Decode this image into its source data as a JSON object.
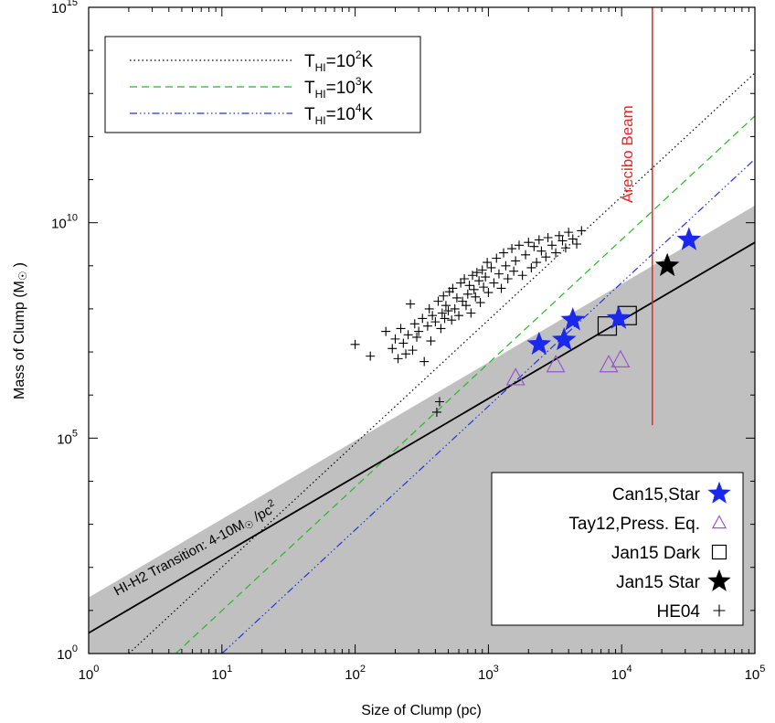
{
  "chart_data": {
    "type": "scatter",
    "xscale": "log",
    "yscale": "log",
    "xlim": [
      1,
      100000
    ],
    "ylim": [
      1,
      1000000000000000
    ],
    "xlabel": "Size of Clump (pc)",
    "ylabel_main": "Mass of Clump (M",
    "ylabel_sun": "☉",
    "ylabel_end": ")",
    "grid": false,
    "x_ticks": [
      {
        "value": 1,
        "base": "10",
        "exp": "0"
      },
      {
        "value": 10,
        "base": "10",
        "exp": "1"
      },
      {
        "value": 100,
        "base": "10",
        "exp": "2"
      },
      {
        "value": 1000,
        "base": "10",
        "exp": "3"
      },
      {
        "value": 10000,
        "base": "10",
        "exp": "4"
      },
      {
        "value": 100000,
        "base": "10",
        "exp": "5"
      }
    ],
    "y_ticks": [
      {
        "value": 1,
        "base": "10",
        "exp": "0"
      },
      {
        "value": 100000,
        "base": "10",
        "exp": "5"
      },
      {
        "value": 10000000000,
        "base": "10",
        "exp": "10"
      },
      {
        "value": 1000000000000000,
        "base": "10",
        "exp": "15"
      }
    ],
    "shaded_region": {
      "color": "#c0c0c0",
      "upper_boundary": [
        [
          1,
          20
        ],
        [
          100000,
          25000000000
        ]
      ]
    },
    "transition_line": {
      "color": "#000000",
      "points": [
        [
          1,
          3
        ],
        [
          100000,
          3500000000
        ]
      ],
      "label_main": "HI-H2 Transition: 4-10M",
      "label_sun": "☉",
      "label_end": " /pc",
      "label_sup": "2"
    },
    "temperature_lines": [
      {
        "name_sub": "HI",
        "exp": "2",
        "unit": "K",
        "color": "#000000",
        "dash": "1.5,3",
        "points": [
          [
            2,
            1
          ],
          [
            100000,
            30000000000000
          ]
        ]
      },
      {
        "name_sub": "HI",
        "exp": "3",
        "unit": "K",
        "color": "#22bb22",
        "dash": "8,5",
        "points": [
          [
            4.5,
            1
          ],
          [
            100000,
            3000000000000
          ]
        ]
      },
      {
        "name_sub": "HI",
        "exp": "4",
        "unit": "K",
        "color": "#2233dd",
        "dash": "8,3,1.5,3,1.5,3,1.5,3",
        "points": [
          [
            10,
            1
          ],
          [
            100000,
            300000000000
          ]
        ]
      }
    ],
    "temperature_legend_prefix": "T",
    "beam": {
      "label": "Arecibo Beam",
      "x": 17000,
      "y_range": [
        200000,
        5000000000000000
      ],
      "color": "#ee2222"
    },
    "series": [
      {
        "name": "Can15,Star",
        "marker": "star",
        "color": "#1a28ee",
        "filled": true,
        "points": [
          [
            2400,
            15000000
          ],
          [
            3700,
            19000000
          ],
          [
            4300,
            55000000
          ],
          [
            9500,
            60000000
          ],
          [
            32000,
            4000000000
          ]
        ]
      },
      {
        "name": "Tay12,Press. Eq.",
        "marker": "triangle",
        "color": "#9955cc",
        "filled": false,
        "points": [
          [
            1600,
            2500000
          ],
          [
            3200,
            5000000
          ],
          [
            8000,
            5000000
          ],
          [
            9800,
            6500000
          ]
        ]
      },
      {
        "name": "Jan15 Dark",
        "marker": "square",
        "color": "#000000",
        "filled": false,
        "points": [
          [
            7800,
            40000000
          ],
          [
            11000,
            70000000
          ]
        ]
      },
      {
        "name": "Jan15 Star",
        "marker": "star",
        "color": "#000000",
        "filled": true,
        "points": [
          [
            22000,
            1000000000
          ]
        ]
      },
      {
        "name": "HE04",
        "marker": "plus",
        "color": "#000000",
        "filled": false,
        "points": [
          [
            100,
            15000000
          ],
          [
            130,
            8000000
          ],
          [
            170,
            30000000
          ],
          [
            190,
            12000000
          ],
          [
            200,
            20000000
          ],
          [
            210,
            7000000
          ],
          [
            220,
            35000000
          ],
          [
            230,
            16000000
          ],
          [
            240,
            9000000
          ],
          [
            250,
            25000000
          ],
          [
            260,
            130000000
          ],
          [
            270,
            11000000
          ],
          [
            280,
            45000000
          ],
          [
            290,
            22000000
          ],
          [
            300,
            30000000
          ],
          [
            320,
            60000000
          ],
          [
            330,
            6000000
          ],
          [
            350,
            40000000
          ],
          [
            360,
            100000000
          ],
          [
            370,
            18000000
          ],
          [
            380,
            70000000
          ],
          [
            400,
            50000000
          ],
          [
            410,
            400000
          ],
          [
            420,
            150000000
          ],
          [
            430,
            700000
          ],
          [
            440,
            35000000
          ],
          [
            450,
            80000000
          ],
          [
            460,
            200000000
          ],
          [
            470,
            60000000
          ],
          [
            480,
            120000000
          ],
          [
            500,
            90000000
          ],
          [
            510,
            250000000
          ],
          [
            530,
            55000000
          ],
          [
            540,
            300000000
          ],
          [
            560,
            100000000
          ],
          [
            580,
            180000000
          ],
          [
            600,
            70000000
          ],
          [
            620,
            400000000
          ],
          [
            640,
            150000000
          ],
          [
            660,
            500000000
          ],
          [
            680,
            120000000
          ],
          [
            700,
            220000000
          ],
          [
            720,
            350000000
          ],
          [
            740,
            80000000
          ],
          [
            760,
            600000000
          ],
          [
            780,
            280000000
          ],
          [
            800,
            190000000
          ],
          [
            820,
            700000000
          ],
          [
            850,
            450000000
          ],
          [
            870,
            140000000
          ],
          [
            900,
            800000000
          ],
          [
            920,
            320000000
          ],
          [
            950,
            550000000
          ],
          [
            980,
            1200000000
          ],
          [
            1000,
            240000000
          ],
          [
            1050,
            900000000
          ],
          [
            1100,
            400000000
          ],
          [
            1150,
            1500000000
          ],
          [
            1200,
            650000000
          ],
          [
            1250,
            300000000
          ],
          [
            1300,
            2000000000
          ],
          [
            1350,
            1000000000
          ],
          [
            1400,
            500000000
          ],
          [
            1500,
            2500000000
          ],
          [
            1550,
            750000000
          ],
          [
            1600,
            1300000000
          ],
          [
            1700,
            3000000000
          ],
          [
            1800,
            600000000
          ],
          [
            1900,
            1800000000
          ],
          [
            2000,
            3500000000
          ],
          [
            2100,
            900000000
          ],
          [
            2200,
            2800000000
          ],
          [
            2300,
            1200000000
          ],
          [
            2400,
            4000000000
          ],
          [
            2500,
            2200000000
          ],
          [
            2700,
            1600000000
          ],
          [
            2800,
            4500000000
          ],
          [
            3000,
            3000000000
          ],
          [
            3200,
            2000000000
          ],
          [
            3400,
            5000000000
          ],
          [
            3600,
            3800000000
          ],
          [
            3800,
            2600000000
          ],
          [
            4000,
            6000000000
          ],
          [
            4300,
            4200000000
          ],
          [
            4600,
            3200000000
          ],
          [
            5000,
            6500000000
          ]
        ]
      }
    ],
    "legend": {
      "placement": "bottom-right"
    }
  }
}
